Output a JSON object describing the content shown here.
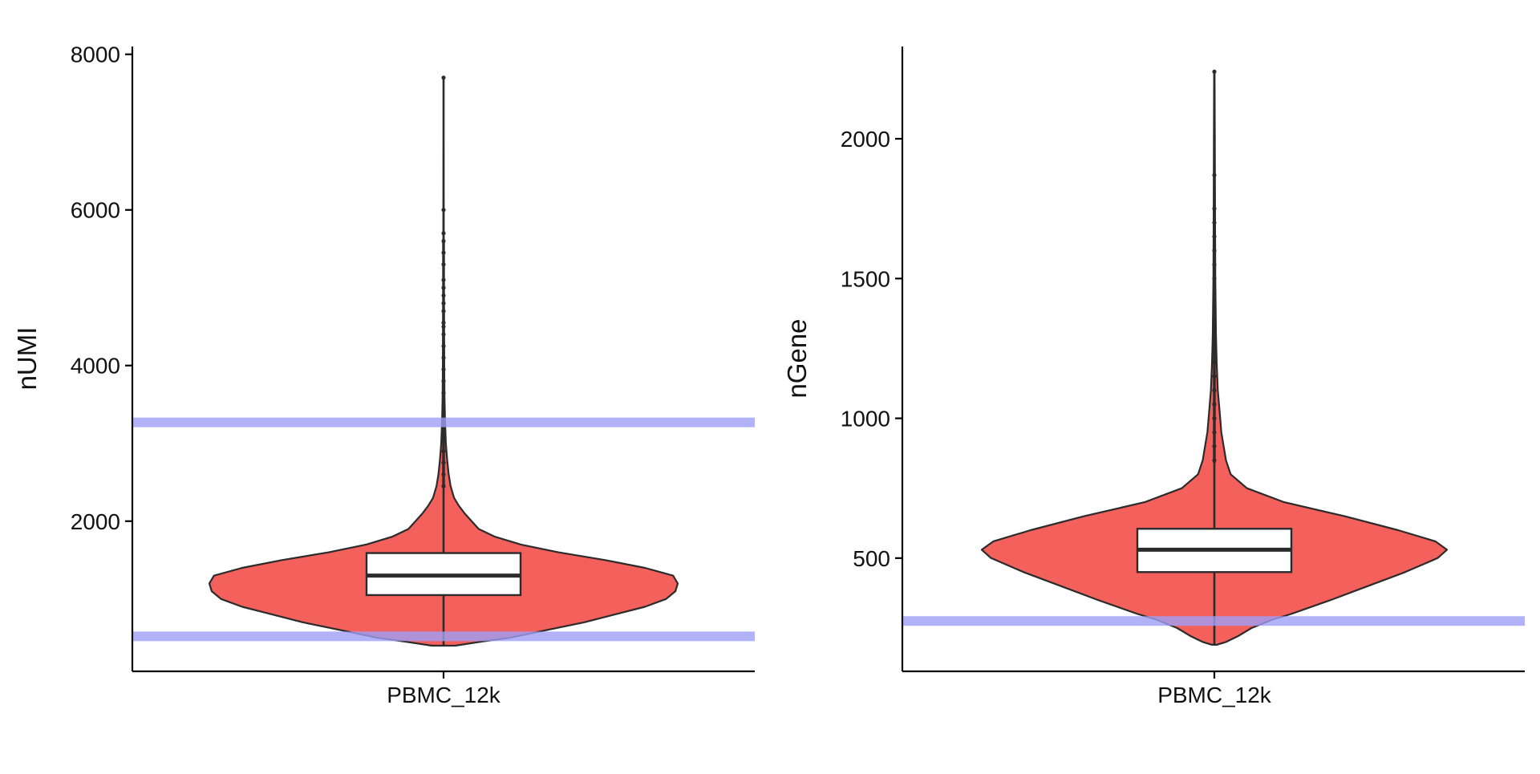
{
  "colors": {
    "violin_fill": "#f4615c",
    "outline": "#2b2b2b",
    "threshold": "#9f9ff7",
    "box_fill": "#ffffff",
    "axis": "#000000"
  },
  "chart_data": [
    {
      "type": "violin",
      "ylabel": "nUMI",
      "categories": [
        "PBMC_12k"
      ],
      "ylim": [
        70,
        8100
      ],
      "yticks": [
        2000,
        4000,
        6000,
        8000
      ],
      "tick_labels": [
        "2000",
        "4000",
        "6000",
        "8000"
      ],
      "grid": false,
      "legend": "none",
      "box": {
        "q1": 1050,
        "median": 1300,
        "q3": 1590,
        "whisker_low": 400,
        "whisker_high": 2450
      },
      "outliers": [
        2450,
        2600,
        2750,
        2900,
        3050,
        3200,
        3350,
        3500,
        3650,
        3800,
        3950,
        4100,
        4250,
        4400,
        4500,
        4550,
        4700,
        4800,
        4900,
        5000,
        5100,
        5300,
        5450,
        5600,
        5700,
        6000,
        7700
      ],
      "density": [
        [
          400,
          0.05
        ],
        [
          450,
          0.16
        ],
        [
          500,
          0.28
        ],
        [
          600,
          0.44
        ],
        [
          700,
          0.6
        ],
        [
          800,
          0.73
        ],
        [
          900,
          0.86
        ],
        [
          1000,
          0.95
        ],
        [
          1100,
          0.99
        ],
        [
          1200,
          1.0
        ],
        [
          1300,
          0.98
        ],
        [
          1400,
          0.86
        ],
        [
          1500,
          0.69
        ],
        [
          1600,
          0.49
        ],
        [
          1700,
          0.33
        ],
        [
          1800,
          0.22
        ],
        [
          1900,
          0.15
        ],
        [
          2000,
          0.12
        ],
        [
          2100,
          0.09
        ],
        [
          2200,
          0.065
        ],
        [
          2300,
          0.045
        ],
        [
          2450,
          0.03
        ],
        [
          2600,
          0.022
        ],
        [
          2800,
          0.015
        ],
        [
          3000,
          0.01
        ],
        [
          3300,
          0.006
        ],
        [
          3600,
          0.004
        ],
        [
          4000,
          0.003
        ],
        [
          4500,
          0.002
        ],
        [
          5000,
          0.0015
        ],
        [
          6000,
          0.001
        ],
        [
          7000,
          0.0008
        ],
        [
          7700,
          0.0006
        ]
      ],
      "thresholds": [
        520,
        3270
      ]
    },
    {
      "type": "violin",
      "ylabel": "nGene",
      "categories": [
        "PBMC_12k"
      ],
      "ylim": [
        95,
        2330
      ],
      "yticks": [
        500,
        1000,
        1500,
        2000
      ],
      "tick_labels": [
        "500",
        "1000",
        "1500",
        "2000"
      ],
      "grid": false,
      "legend": "none",
      "box": {
        "q1": 450,
        "median": 530,
        "q3": 605,
        "whisker_low": 190,
        "whisker_high": 840
      },
      "outliers": [
        850,
        900,
        950,
        1000,
        1050,
        1100,
        1150,
        1200,
        1250,
        1300,
        1350,
        1400,
        1450,
        1500,
        1550,
        1600,
        1650,
        1700,
        1750,
        1870,
        2240
      ],
      "density": [
        [
          190,
          0.01
        ],
        [
          200,
          0.05
        ],
        [
          220,
          0.1
        ],
        [
          250,
          0.16
        ],
        [
          280,
          0.25
        ],
        [
          300,
          0.33
        ],
        [
          350,
          0.5
        ],
        [
          400,
          0.66
        ],
        [
          450,
          0.82
        ],
        [
          500,
          0.96
        ],
        [
          530,
          1.0
        ],
        [
          560,
          0.95
        ],
        [
          600,
          0.79
        ],
        [
          650,
          0.56
        ],
        [
          700,
          0.3
        ],
        [
          750,
          0.14
        ],
        [
          800,
          0.07
        ],
        [
          850,
          0.05
        ],
        [
          900,
          0.04
        ],
        [
          950,
          0.03
        ],
        [
          1000,
          0.025
        ],
        [
          1100,
          0.015
        ],
        [
          1200,
          0.01
        ],
        [
          1300,
          0.007
        ],
        [
          1500,
          0.004
        ],
        [
          1700,
          0.003
        ],
        [
          2000,
          0.002
        ],
        [
          2240,
          0.001
        ]
      ],
      "thresholds": [
        275
      ]
    }
  ]
}
